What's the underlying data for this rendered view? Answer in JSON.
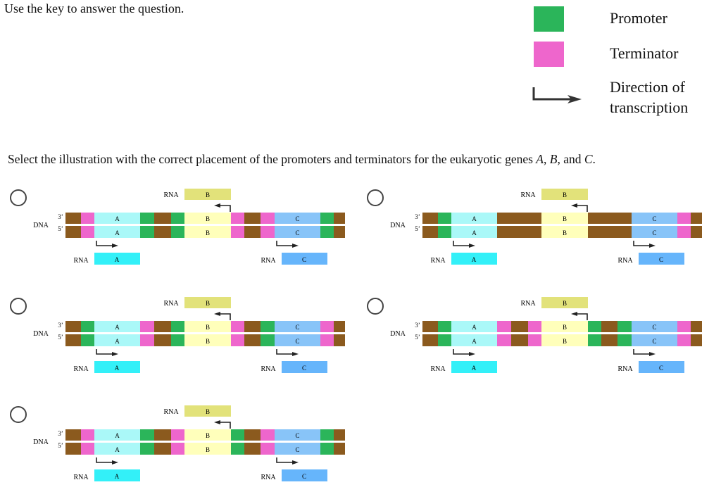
{
  "instruction": "Use the key to answer the question.",
  "key": {
    "promoter": {
      "label": "Promoter",
      "color": "#2bb55a"
    },
    "terminator": {
      "label": "Terminator",
      "color": "#ee66cc"
    },
    "direction": {
      "label_line1": "Direction of",
      "label_line2": "transcription",
      "icon": "bent-arrow-icon"
    }
  },
  "question": {
    "prefix": "Select the illustration with the correct placement of the promoters and terminators for the eukaryotic genes ",
    "gene_a": "A",
    "sep1": ", ",
    "gene_b": "B",
    "sep2": ", and ",
    "gene_c": "C",
    "suffix": "."
  },
  "labels": {
    "dna": "DNA",
    "rna": "RNA",
    "three_prime": "3’",
    "five_prime": "5’",
    "gene_a": "A",
    "gene_b": "B",
    "gene_c": "C"
  },
  "colors": {
    "dna": "#8b5a1e",
    "promoter": "#2bb55a",
    "terminator": "#ee66cc",
    "gene_a": "#aaf8f8",
    "gene_b": "#ffffbb",
    "gene_c": "#88c4f8",
    "rna_a": "#33f0f8",
    "rna_b": "#e2e27a",
    "rna_c": "#66b5fb"
  },
  "options": [
    {
      "id": "option-1",
      "selected": false,
      "elements": [
        "terminator",
        "promoter",
        "promoter",
        "terminator",
        "terminator",
        "promoter"
      ]
    },
    {
      "id": "option-2",
      "selected": false,
      "elements": [
        "promoter",
        "none",
        "none",
        "none",
        "none",
        "terminator"
      ]
    },
    {
      "id": "option-3",
      "selected": false,
      "elements": [
        "promoter",
        "terminator",
        "promoter",
        "terminator",
        "promoter",
        "terminator"
      ]
    },
    {
      "id": "option-4",
      "selected": false,
      "elements": [
        "promoter",
        "terminator",
        "terminator",
        "promoter",
        "promoter",
        "terminator"
      ]
    },
    {
      "id": "option-5",
      "selected": false,
      "elements": [
        "terminator",
        "promoter",
        "terminator",
        "promoter",
        "terminator",
        "promoter"
      ]
    }
  ]
}
